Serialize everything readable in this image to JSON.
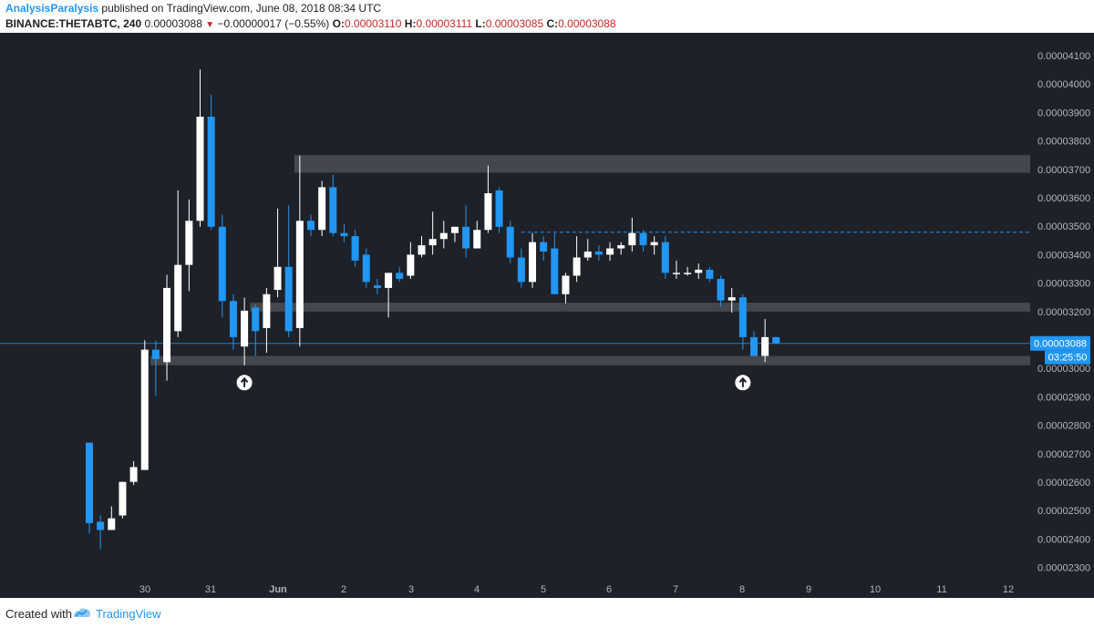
{
  "header": {
    "author": "AnalysisParalysis",
    "published": "published on TradingView.com, June 08, 2018 08:34 UTC",
    "symbol": "BINANCE:THETABTC, 240",
    "last": "0.00003088",
    "change": "−0.00000017 (−0.55%)",
    "o_label": "O:",
    "o_value": "0.00003110",
    "h_label": "H:",
    "h_value": "0.00003111",
    "l_label": "L:",
    "l_value": "0.00003085",
    "c_label": "C:",
    "c_value": "0.00003088"
  },
  "footer": {
    "created_with": "Created with",
    "brand": "TradingView"
  },
  "colors": {
    "background": "#1e2128",
    "up": "#ffffff",
    "down": "#2196f3",
    "zone": "#4a4d55",
    "text": "#b2b5be"
  },
  "chart_data": {
    "type": "candlestick",
    "interval": "240",
    "price_labels": [
      "0.00004100",
      "0.00004000",
      "0.00003900",
      "0.00003800",
      "0.00003700",
      "0.00003600",
      "0.00003500",
      "0.00003400",
      "0.00003300",
      "0.00003200",
      "0.00003100",
      "0.00003000",
      "0.00002900",
      "0.00002800",
      "0.00002700",
      "0.00002600",
      "0.00002500",
      "0.00002400",
      "0.00002300"
    ],
    "ylim": [
      2.27e-05,
      4.18e-05
    ],
    "time_labels": [
      "30",
      "31",
      "Jun",
      "2",
      "3",
      "4",
      "5",
      "6",
      "7",
      "8",
      "9",
      "10",
      "11",
      "12"
    ],
    "last_price": 3.088e-05,
    "last_price_label": "0.00003088",
    "countdown_label": "03:25:50",
    "candles": [
      {
        "o": 2.739e-05,
        "h": 2.739e-05,
        "l": 2.42e-05,
        "c": 2.456e-05
      },
      {
        "o": 2.461e-05,
        "h": 2.483e-05,
        "l": 2.364e-05,
        "c": 2.432e-05
      },
      {
        "o": 2.432e-05,
        "h": 2.515e-05,
        "l": 2.432e-05,
        "c": 2.473e-05
      },
      {
        "o": 2.483e-05,
        "h": 2.601e-05,
        "l": 2.473e-05,
        "c": 2.601e-05
      },
      {
        "o": 2.601e-05,
        "h": 2.674e-05,
        "l": 2.59e-05,
        "c": 2.653e-05
      },
      {
        "o": 2.643e-05,
        "h": 3.099e-05,
        "l": 2.643e-05,
        "c": 3.066e-05
      },
      {
        "o": 3.066e-05,
        "h": 3.099e-05,
        "l": 2.904e-05,
        "c": 3.033e-05
      },
      {
        "o": 3.022e-05,
        "h": 3.329e-05,
        "l": 2.957e-05,
        "c": 3.283e-05
      },
      {
        "o": 3.131e-05,
        "h": 3.626e-05,
        "l": 3.11e-05,
        "c": 3.364e-05
      },
      {
        "o": 3.364e-05,
        "h": 3.594e-05,
        "l": 3.272e-05,
        "c": 3.519e-05
      },
      {
        "o": 3.519e-05,
        "h": 4.051e-05,
        "l": 3.498e-05,
        "c": 3.885e-05
      },
      {
        "o": 3.885e-05,
        "h": 3.963e-05,
        "l": 3.487e-05,
        "c": 3.498e-05
      },
      {
        "o": 3.498e-05,
        "h": 3.541e-05,
        "l": 3.179e-05,
        "c": 3.237e-05
      },
      {
        "o": 3.237e-05,
        "h": 3.261e-05,
        "l": 3.066e-05,
        "c": 3.11e-05
      },
      {
        "o": 3.077e-05,
        "h": 3.249e-05,
        "l": 3.011e-05,
        "c": 3.203e-05
      },
      {
        "o": 3.214e-05,
        "h": 3.225e-05,
        "l": 3.044e-05,
        "c": 3.131e-05
      },
      {
        "o": 3.142e-05,
        "h": 3.283e-05,
        "l": 3.055e-05,
        "c": 3.261e-05
      },
      {
        "o": 3.276e-05,
        "h": 3.562e-05,
        "l": 3.25e-05,
        "c": 3.357e-05
      },
      {
        "o": 3.357e-05,
        "h": 3.573e-05,
        "l": 3.11e-05,
        "c": 3.131e-05
      },
      {
        "o": 3.142e-05,
        "h": 3.748e-05,
        "l": 3.077e-05,
        "c": 3.519e-05
      },
      {
        "o": 3.519e-05,
        "h": 3.541e-05,
        "l": 3.465e-05,
        "c": 3.487e-05
      },
      {
        "o": 3.487e-05,
        "h": 3.659e-05,
        "l": 3.465e-05,
        "c": 3.637e-05
      },
      {
        "o": 3.637e-05,
        "h": 3.681e-05,
        "l": 3.465e-05,
        "c": 3.476e-05
      },
      {
        "o": 3.476e-05,
        "h": 3.508e-05,
        "l": 3.444e-05,
        "c": 3.465e-05
      },
      {
        "o": 3.465e-05,
        "h": 3.487e-05,
        "l": 3.357e-05,
        "c": 3.379e-05
      },
      {
        "o": 3.4e-05,
        "h": 3.422e-05,
        "l": 3.283e-05,
        "c": 3.304e-05
      },
      {
        "o": 3.292e-05,
        "h": 3.315e-05,
        "l": 3.261e-05,
        "c": 3.283e-05
      },
      {
        "o": 3.283e-05,
        "h": 3.336e-05,
        "l": 3.179e-05,
        "c": 3.336e-05
      },
      {
        "o": 3.336e-05,
        "h": 3.357e-05,
        "l": 3.304e-05,
        "c": 3.315e-05
      },
      {
        "o": 3.326e-05,
        "h": 3.444e-05,
        "l": 3.315e-05,
        "c": 3.4e-05
      },
      {
        "o": 3.4e-05,
        "h": 3.465e-05,
        "l": 3.39e-05,
        "c": 3.433e-05
      },
      {
        "o": 3.433e-05,
        "h": 3.551e-05,
        "l": 3.4e-05,
        "c": 3.455e-05
      },
      {
        "o": 3.455e-05,
        "h": 3.519e-05,
        "l": 3.422e-05,
        "c": 3.476e-05
      },
      {
        "o": 3.476e-05,
        "h": 3.498e-05,
        "l": 3.444e-05,
        "c": 3.498e-05
      },
      {
        "o": 3.498e-05,
        "h": 3.573e-05,
        "l": 3.39e-05,
        "c": 3.422e-05
      },
      {
        "o": 3.422e-05,
        "h": 3.519e-05,
        "l": 3.422e-05,
        "c": 3.487e-05
      },
      {
        "o": 3.487e-05,
        "h": 3.713e-05,
        "l": 3.476e-05,
        "c": 3.616e-05
      },
      {
        "o": 3.626e-05,
        "h": 3.637e-05,
        "l": 3.476e-05,
        "c": 3.498e-05
      },
      {
        "o": 3.498e-05,
        "h": 3.519e-05,
        "l": 3.369e-05,
        "c": 3.39e-05
      },
      {
        "o": 3.39e-05,
        "h": 3.422e-05,
        "l": 3.283e-05,
        "c": 3.304e-05
      },
      {
        "o": 3.304e-05,
        "h": 3.476e-05,
        "l": 3.283e-05,
        "c": 3.444e-05
      },
      {
        "o": 3.444e-05,
        "h": 3.465e-05,
        "l": 3.379e-05,
        "c": 3.411e-05
      },
      {
        "o": 3.422e-05,
        "h": 3.476e-05,
        "l": 3.261e-05,
        "c": 3.261e-05
      },
      {
        "o": 3.261e-05,
        "h": 3.336e-05,
        "l": 3.229e-05,
        "c": 3.326e-05
      },
      {
        "o": 3.326e-05,
        "h": 3.465e-05,
        "l": 3.304e-05,
        "c": 3.39e-05
      },
      {
        "o": 3.39e-05,
        "h": 3.455e-05,
        "l": 3.379e-05,
        "c": 3.411e-05
      },
      {
        "o": 3.411e-05,
        "h": 3.433e-05,
        "l": 3.379e-05,
        "c": 3.4e-05
      },
      {
        "o": 3.4e-05,
        "h": 3.444e-05,
        "l": 3.379e-05,
        "c": 3.422e-05
      },
      {
        "o": 3.422e-05,
        "h": 3.444e-05,
        "l": 3.4e-05,
        "c": 3.433e-05
      },
      {
        "o": 3.433e-05,
        "h": 3.53e-05,
        "l": 3.411e-05,
        "c": 3.476e-05
      },
      {
        "o": 3.476e-05,
        "h": 3.487e-05,
        "l": 3.411e-05,
        "c": 3.433e-05
      },
      {
        "o": 3.433e-05,
        "h": 3.465e-05,
        "l": 3.4e-05,
        "c": 3.444e-05
      },
      {
        "o": 3.444e-05,
        "h": 3.465e-05,
        "l": 3.315e-05,
        "c": 3.336e-05
      },
      {
        "o": 3.336e-05,
        "h": 3.379e-05,
        "l": 3.315e-05,
        "c": 3.336e-05
      },
      {
        "o": 3.336e-05,
        "h": 3.357e-05,
        "l": 3.326e-05,
        "c": 3.336e-05
      },
      {
        "o": 3.336e-05,
        "h": 3.369e-05,
        "l": 3.315e-05,
        "c": 3.347e-05
      },
      {
        "o": 3.347e-05,
        "h": 3.357e-05,
        "l": 3.304e-05,
        "c": 3.315e-05
      },
      {
        "o": 3.315e-05,
        "h": 3.326e-05,
        "l": 3.218e-05,
        "c": 3.239e-05
      },
      {
        "o": 3.239e-05,
        "h": 3.283e-05,
        "l": 3.196e-05,
        "c": 3.25e-05
      },
      {
        "o": 3.25e-05,
        "h": 3.261e-05,
        "l": 3.066e-05,
        "c": 3.11e-05
      },
      {
        "o": 3.11e-05,
        "h": 3.131e-05,
        "l": 3.044e-05,
        "c": 3.044e-05
      },
      {
        "o": 3.044e-05,
        "h": 3.174e-05,
        "l": 3.022e-05,
        "c": 3.11e-05
      },
      {
        "o": 3.11e-05,
        "h": 3.111e-05,
        "l": 3.085e-05,
        "c": 3.088e-05
      }
    ],
    "zones": [
      {
        "top": 3.75e-05,
        "bottom": 3.688e-05,
        "from_candle": 19
      },
      {
        "top": 3.231e-05,
        "bottom": 3.2e-05,
        "from_candle": 15
      },
      {
        "top": 3.044e-05,
        "bottom": 3.011e-05,
        "from_candle": 6
      }
    ],
    "level_line": {
      "price": 3.479e-05,
      "from_candle": 39
    },
    "up_markers": [
      {
        "candle": 14,
        "price": 2.95e-05
      },
      {
        "candle": 59,
        "price": 2.95e-05
      }
    ]
  }
}
